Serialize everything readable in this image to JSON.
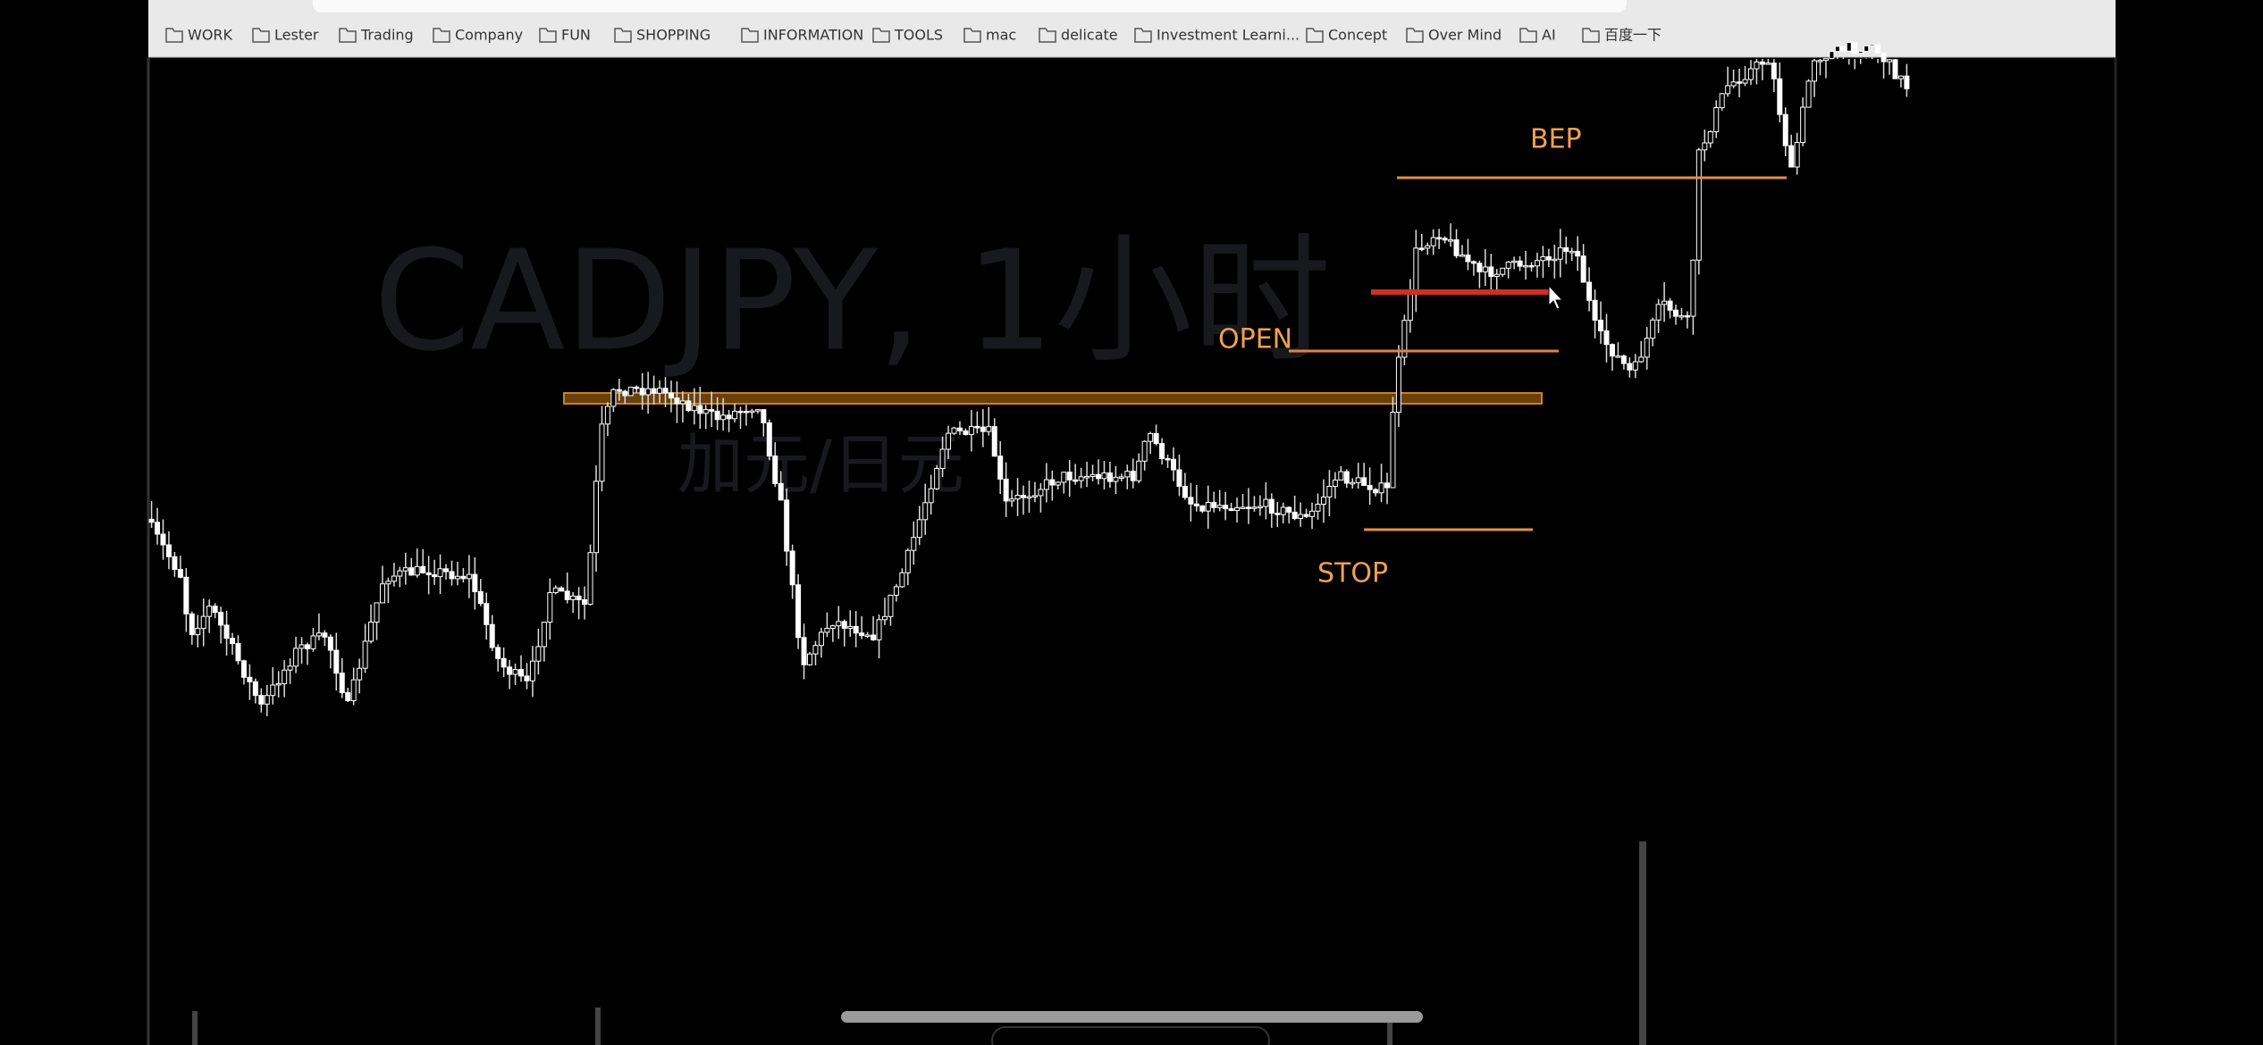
{
  "browser": {
    "bookmarks": [
      "WORK",
      "Lester",
      "Trading",
      "Company",
      "FUN",
      "SHOPPING",
      "INFORMATION",
      "TOOLS",
      "mac",
      "delicate",
      "Investment Learni...",
      "Concept",
      "Over Mind",
      "AI",
      "百度一下"
    ]
  },
  "chart": {
    "watermark_symbol": "CADJPY, 1小时",
    "watermark_name": "加元/日元",
    "labels": {
      "open": "OPEN",
      "bep": "BEP",
      "stop": "STOP"
    }
  }
}
